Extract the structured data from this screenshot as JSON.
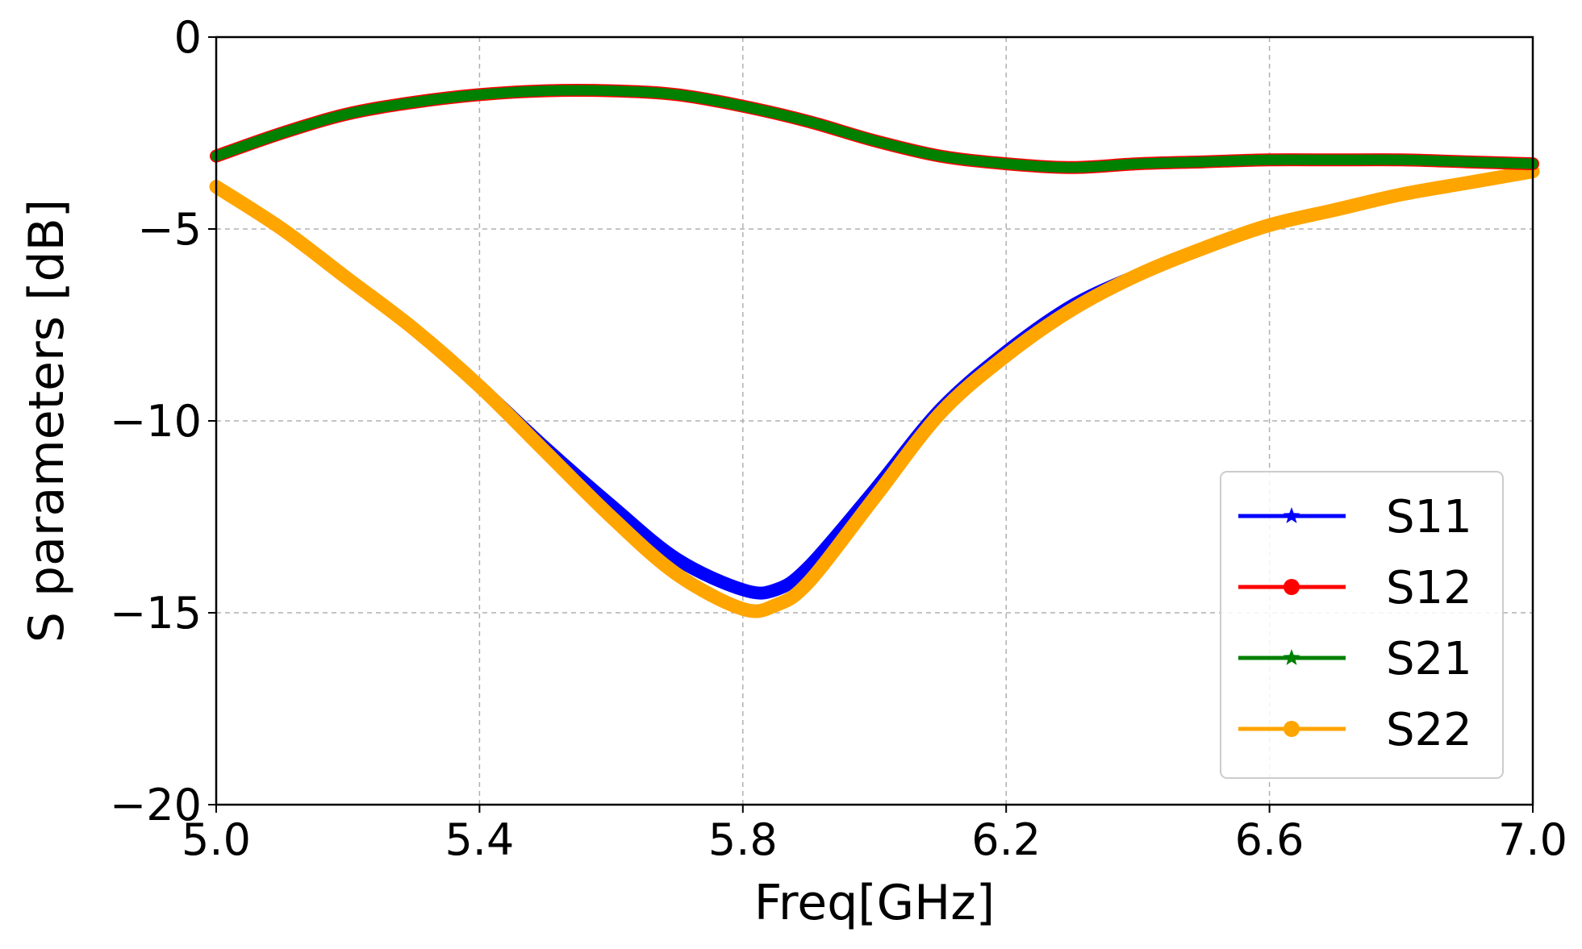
{
  "chart_data": {
    "type": "line",
    "xlabel": "Freq[GHz]",
    "ylabel": "S parameters [dB]",
    "xlim": [
      5.0,
      7.0
    ],
    "ylim": [
      -20,
      0
    ],
    "x_ticks": [
      5.0,
      5.4,
      5.8,
      6.2,
      6.6,
      7.0
    ],
    "x_tick_labels": [
      "5.0",
      "5.4",
      "5.8",
      "6.2",
      "6.6",
      "7.0"
    ],
    "y_ticks": [
      0,
      -5,
      -10,
      -15,
      -20
    ],
    "y_tick_labels": [
      "0",
      "−5",
      "−10",
      "−15",
      "−20"
    ],
    "grid": true,
    "legend_position": "lower-right",
    "series": [
      {
        "name": "S11",
        "color": "#0000ff",
        "marker": "star",
        "x": [
          5.0,
          5.1,
          5.2,
          5.3,
          5.4,
          5.5,
          5.6,
          5.7,
          5.8,
          5.85,
          5.9,
          6.0,
          6.1,
          6.2,
          6.3,
          6.4,
          6.5,
          6.6,
          6.7,
          6.8,
          6.9,
          7.0
        ],
        "y": [
          -3.9,
          -5.0,
          -6.3,
          -7.6,
          -9.1,
          -10.7,
          -12.2,
          -13.6,
          -14.4,
          -14.4,
          -13.8,
          -11.8,
          -9.7,
          -8.2,
          -7.0,
          -6.2,
          -5.5,
          -4.9,
          -4.5,
          -4.1,
          -3.8,
          -3.5
        ]
      },
      {
        "name": "S12",
        "color": "#ff0000",
        "marker": "circle",
        "x": [
          5.0,
          5.1,
          5.2,
          5.3,
          5.4,
          5.5,
          5.6,
          5.7,
          5.8,
          5.9,
          6.0,
          6.1,
          6.2,
          6.3,
          6.4,
          6.5,
          6.6,
          6.7,
          6.8,
          6.9,
          7.0
        ],
        "y": [
          -3.1,
          -2.5,
          -2.0,
          -1.7,
          -1.5,
          -1.4,
          -1.4,
          -1.5,
          -1.8,
          -2.2,
          -2.7,
          -3.1,
          -3.3,
          -3.4,
          -3.3,
          -3.25,
          -3.2,
          -3.2,
          -3.2,
          -3.25,
          -3.3
        ]
      },
      {
        "name": "S21",
        "color": "#008000",
        "marker": "star",
        "x": [
          5.0,
          5.1,
          5.2,
          5.3,
          5.4,
          5.5,
          5.6,
          5.7,
          5.8,
          5.9,
          6.0,
          6.1,
          6.2,
          6.3,
          6.4,
          6.5,
          6.6,
          6.7,
          6.8,
          6.9,
          7.0
        ],
        "y": [
          -3.1,
          -2.5,
          -2.0,
          -1.7,
          -1.5,
          -1.4,
          -1.4,
          -1.5,
          -1.8,
          -2.2,
          -2.7,
          -3.1,
          -3.3,
          -3.4,
          -3.3,
          -3.25,
          -3.2,
          -3.2,
          -3.2,
          -3.25,
          -3.3
        ]
      },
      {
        "name": "S22",
        "color": "#ffa500",
        "marker": "circle",
        "x": [
          5.0,
          5.1,
          5.2,
          5.3,
          5.4,
          5.5,
          5.6,
          5.7,
          5.8,
          5.85,
          5.9,
          6.0,
          6.1,
          6.2,
          6.3,
          6.4,
          6.5,
          6.6,
          6.7,
          6.8,
          6.9,
          7.0
        ],
        "y": [
          -3.9,
          -5.0,
          -6.3,
          -7.6,
          -9.1,
          -10.8,
          -12.5,
          -14.0,
          -14.9,
          -14.8,
          -14.2,
          -12.0,
          -9.8,
          -8.3,
          -7.1,
          -6.2,
          -5.5,
          -4.9,
          -4.5,
          -4.1,
          -3.8,
          -3.5
        ]
      }
    ]
  }
}
